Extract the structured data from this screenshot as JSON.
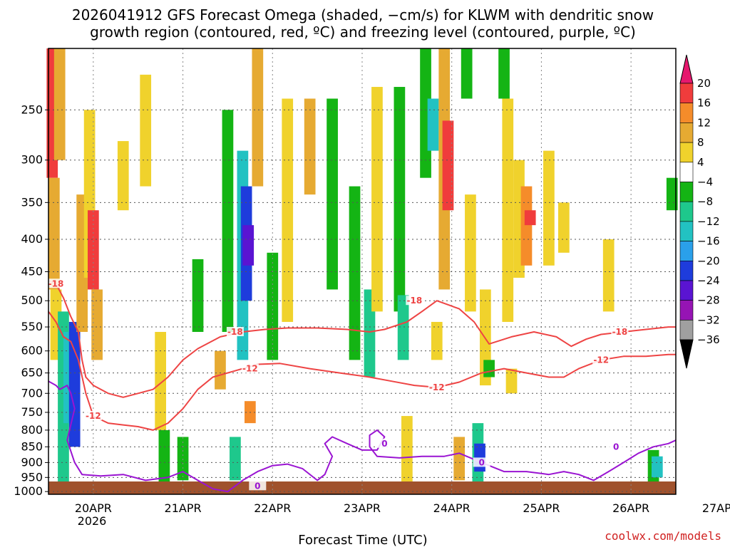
{
  "chart_data": {
    "type": "heatmap",
    "title_line1": "2026041912 GFS Forecast Omega (shaded, −cm/s) for KLWM with dendritic snow",
    "title_line2": "growth region (contoured, red, ºC) and freezing level (contoured, purple, ºC)",
    "xlabel": "Forecast Time (UTC)",
    "ylabel": "",
    "credit": "coolwx.com/models",
    "x_tick_labels": [
      "20APR",
      "21APR",
      "22APR",
      "23APR",
      "24APR",
      "25APR",
      "26APR",
      "27APR"
    ],
    "x_tick_sublabel": "2026",
    "x_range_hours": [
      0,
      168
    ],
    "y_tick_labels": [
      "250",
      "300",
      "350",
      "400",
      "450",
      "500",
      "550",
      "600",
      "650",
      "700",
      "750",
      "800",
      "850",
      "900",
      "950",
      "1000"
    ],
    "y_scale": "log-pressure",
    "y_range_hPa": [
      200,
      1010
    ],
    "grid": true,
    "colorbar": {
      "labels": [
        "20",
        "16",
        "12",
        "8",
        "4",
        "−4",
        "−8",
        "−12",
        "−16",
        "−20",
        "−24",
        "−28",
        "−32",
        "−36"
      ],
      "colors": [
        "#f03c3c",
        "#f58c2a",
        "#e6aa32",
        "#f0d22c",
        "#ffffff",
        "#14b414",
        "#1ec88c",
        "#22c2c2",
        "#2aa0ea",
        "#1e3cdc",
        "#5a14d2",
        "#9614b4",
        "#a0a0a0"
      ],
      "top_cap_color": "#e6186e",
      "bottom_cap_color": "#000000"
    },
    "omega_cells": [
      {
        "x": 1,
        "y0": 200,
        "y1": 320,
        "v": 18
      },
      {
        "x": 1.5,
        "y0": 320,
        "y1": 480,
        "v": 10
      },
      {
        "x": 3,
        "y0": 200,
        "y1": 300,
        "v": 8
      },
      {
        "x": 2,
        "y0": 480,
        "y1": 620,
        "v": 6
      },
      {
        "x": 4,
        "y0": 520,
        "y1": 980,
        "v": -10
      },
      {
        "x": 5.5,
        "y0": 560,
        "y1": 780,
        "v": -16
      },
      {
        "x": 7,
        "y0": 540,
        "y1": 850,
        "v": -22
      },
      {
        "x": 9,
        "y0": 340,
        "y1": 560,
        "v": 8
      },
      {
        "x": 11,
        "y0": 250,
        "y1": 460,
        "v": 6
      },
      {
        "x": 12,
        "y0": 360,
        "y1": 480,
        "v": 17
      },
      {
        "x": 13,
        "y0": 480,
        "y1": 620,
        "v": 8
      },
      {
        "x": 20,
        "y0": 280,
        "y1": 360,
        "v": 6
      },
      {
        "x": 26,
        "y0": 220,
        "y1": 330,
        "v": 6
      },
      {
        "x": 30,
        "y0": 560,
        "y1": 800,
        "v": 5
      },
      {
        "x": 31,
        "y0": 800,
        "y1": 980,
        "v": -8
      },
      {
        "x": 36,
        "y0": 820,
        "y1": 960,
        "v": -6
      },
      {
        "x": 40,
        "y0": 430,
        "y1": 560,
        "v": -6
      },
      {
        "x": 46,
        "y0": 600,
        "y1": 690,
        "v": 8
      },
      {
        "x": 48,
        "y0": 250,
        "y1": 560,
        "v": -8
      },
      {
        "x": 50,
        "y0": 820,
        "y1": 960,
        "v": -12
      },
      {
        "x": 52,
        "y0": 290,
        "y1": 620,
        "v": -14
      },
      {
        "x": 53,
        "y0": 330,
        "y1": 500,
        "v": -22
      },
      {
        "x": 53.5,
        "y0": 380,
        "y1": 440,
        "v": -26
      },
      {
        "x": 54,
        "y0": 720,
        "y1": 780,
        "v": 12
      },
      {
        "x": 56,
        "y0": 200,
        "y1": 330,
        "v": 8
      },
      {
        "x": 60,
        "y0": 420,
        "y1": 620,
        "v": -8
      },
      {
        "x": 64,
        "y0": 240,
        "y1": 540,
        "v": 6
      },
      {
        "x": 70,
        "y0": 240,
        "y1": 340,
        "v": 8
      },
      {
        "x": 76,
        "y0": 240,
        "y1": 480,
        "v": -8
      },
      {
        "x": 82,
        "y0": 330,
        "y1": 620,
        "v": -6
      },
      {
        "x": 86,
        "y0": 480,
        "y1": 660,
        "v": -10
      },
      {
        "x": 88,
        "y0": 230,
        "y1": 520,
        "v": 6
      },
      {
        "x": 94,
        "y0": 230,
        "y1": 520,
        "v": -8
      },
      {
        "x": 95,
        "y0": 490,
        "y1": 620,
        "v": -12
      },
      {
        "x": 96,
        "y0": 760,
        "y1": 980,
        "v": 6
      },
      {
        "x": 101,
        "y0": 200,
        "y1": 320,
        "v": -8
      },
      {
        "x": 103,
        "y0": 240,
        "y1": 290,
        "v": -14
      },
      {
        "x": 104,
        "y0": 540,
        "y1": 620,
        "v": 6
      },
      {
        "x": 106,
        "y0": 200,
        "y1": 480,
        "v": 10
      },
      {
        "x": 107,
        "y0": 260,
        "y1": 360,
        "v": 17
      },
      {
        "x": 110,
        "y0": 820,
        "y1": 960,
        "v": 8
      },
      {
        "x": 112,
        "y0": 200,
        "y1": 240,
        "v": -8
      },
      {
        "x": 113,
        "y0": 340,
        "y1": 520,
        "v": 6
      },
      {
        "x": 115,
        "y0": 780,
        "y1": 980,
        "v": -12
      },
      {
        "x": 115.5,
        "y0": 840,
        "y1": 930,
        "v": -21
      },
      {
        "x": 117,
        "y0": 480,
        "y1": 680,
        "v": 6
      },
      {
        "x": 118,
        "y0": 620,
        "y1": 660,
        "v": -8
      },
      {
        "x": 122,
        "y0": 200,
        "y1": 240,
        "v": -8
      },
      {
        "x": 123,
        "y0": 240,
        "y1": 540,
        "v": 6
      },
      {
        "x": 124,
        "y0": 640,
        "y1": 700,
        "v": 6
      },
      {
        "x": 126,
        "y0": 300,
        "y1": 460,
        "v": 6
      },
      {
        "x": 128,
        "y0": 330,
        "y1": 440,
        "v": 12
      },
      {
        "x": 129,
        "y0": 360,
        "y1": 380,
        "v": 16
      },
      {
        "x": 134,
        "y0": 290,
        "y1": 440,
        "v": 5
      },
      {
        "x": 138,
        "y0": 350,
        "y1": 420,
        "v": 6
      },
      {
        "x": 150,
        "y0": 400,
        "y1": 520,
        "v": 6
      },
      {
        "x": 162,
        "y0": 860,
        "y1": 970,
        "v": -8
      },
      {
        "x": 163,
        "y0": 880,
        "y1": 950,
        "v": -14
      },
      {
        "x": 167,
        "y0": 320,
        "y1": 360,
        "v": -8
      }
    ],
    "contours": [
      {
        "series_label": "-18",
        "color": "#ee4444",
        "points": [
          [
            0,
            465
          ],
          [
            2,
            470
          ],
          [
            4,
            495
          ],
          [
            6,
            530
          ],
          [
            8,
            560
          ],
          [
            9,
            620
          ],
          [
            10,
            660
          ],
          [
            12,
            680
          ],
          [
            16,
            700
          ],
          [
            20,
            710
          ],
          [
            24,
            700
          ],
          [
            28,
            690
          ],
          [
            32,
            660
          ],
          [
            36,
            620
          ],
          [
            40,
            595
          ],
          [
            46,
            570
          ],
          [
            52,
            560
          ],
          [
            58,
            555
          ],
          [
            64,
            552
          ],
          [
            72,
            552
          ],
          [
            80,
            555
          ],
          [
            86,
            560
          ],
          [
            90,
            555
          ],
          [
            96,
            540
          ],
          [
            100,
            520
          ],
          [
            104,
            500
          ],
          [
            110,
            515
          ],
          [
            114,
            540
          ],
          [
            118,
            585
          ],
          [
            124,
            570
          ],
          [
            130,
            560
          ],
          [
            136,
            570
          ],
          [
            140,
            590
          ],
          [
            144,
            575
          ],
          [
            148,
            565
          ],
          [
            154,
            560
          ],
          [
            160,
            555
          ],
          [
            166,
            550
          ],
          [
            168,
            550
          ]
        ],
        "label_points": [
          [
            2,
            470
          ],
          [
            50,
            560
          ],
          [
            98,
            500
          ],
          [
            153,
            560
          ]
        ]
      },
      {
        "series_label": "-12",
        "color": "#ee4444",
        "points": [
          [
            0,
            520
          ],
          [
            2,
            540
          ],
          [
            4,
            570
          ],
          [
            6,
            580
          ],
          [
            8,
            620
          ],
          [
            10,
            700
          ],
          [
            12,
            760
          ],
          [
            16,
            780
          ],
          [
            20,
            785
          ],
          [
            24,
            790
          ],
          [
            28,
            800
          ],
          [
            32,
            780
          ],
          [
            36,
            740
          ],
          [
            40,
            690
          ],
          [
            44,
            660
          ],
          [
            50,
            645
          ],
          [
            56,
            630
          ],
          [
            62,
            628
          ],
          [
            70,
            640
          ],
          [
            78,
            650
          ],
          [
            86,
            660
          ],
          [
            92,
            670
          ],
          [
            98,
            680
          ],
          [
            104,
            685
          ],
          [
            110,
            672
          ],
          [
            116,
            650
          ],
          [
            122,
            640
          ],
          [
            128,
            650
          ],
          [
            134,
            660
          ],
          [
            138,
            660
          ],
          [
            142,
            640
          ],
          [
            148,
            620
          ],
          [
            154,
            612
          ],
          [
            160,
            612
          ],
          [
            166,
            608
          ],
          [
            168,
            608
          ]
        ],
        "label_points": [
          [
            12,
            760
          ],
          [
            54,
            640
          ],
          [
            104,
            685
          ],
          [
            148,
            620
          ]
        ]
      },
      {
        "series_label": "0",
        "color": "#9a14d2",
        "points": [
          [
            0,
            670
          ],
          [
            2,
            680
          ],
          [
            3,
            690
          ],
          [
            5,
            680
          ],
          [
            6,
            700
          ],
          [
            7,
            740
          ],
          [
            5,
            830
          ],
          [
            7,
            900
          ],
          [
            9,
            940
          ],
          [
            14,
            945
          ],
          [
            20,
            940
          ],
          [
            26,
            960
          ],
          [
            32,
            950
          ],
          [
            36,
            930
          ],
          [
            40,
            960
          ],
          [
            44,
            990
          ],
          [
            48,
            1000
          ],
          [
            52,
            960
          ],
          [
            56,
            930
          ],
          [
            60,
            910
          ],
          [
            64,
            905
          ],
          [
            68,
            920
          ],
          [
            72,
            960
          ],
          [
            74,
            940
          ],
          [
            76,
            880
          ],
          [
            74,
            840
          ],
          [
            76,
            820
          ],
          [
            80,
            840
          ],
          [
            84,
            860
          ],
          [
            88,
            860
          ],
          [
            90,
            820
          ],
          [
            88,
            800
          ],
          [
            86,
            815
          ],
          [
            86,
            850
          ],
          [
            88,
            880
          ],
          [
            94,
            885
          ],
          [
            100,
            880
          ],
          [
            106,
            880
          ],
          [
            110,
            870
          ],
          [
            116,
            900
          ],
          [
            122,
            930
          ],
          [
            128,
            930
          ],
          [
            134,
            940
          ],
          [
            138,
            930
          ],
          [
            142,
            940
          ],
          [
            146,
            960
          ],
          [
            150,
            930
          ],
          [
            154,
            900
          ],
          [
            158,
            870
          ],
          [
            162,
            850
          ],
          [
            166,
            840
          ],
          [
            168,
            830
          ]
        ],
        "label_points": [
          [
            56,
            980
          ],
          [
            90,
            840
          ],
          [
            116,
            900
          ],
          [
            152,
            850
          ]
        ]
      }
    ]
  }
}
